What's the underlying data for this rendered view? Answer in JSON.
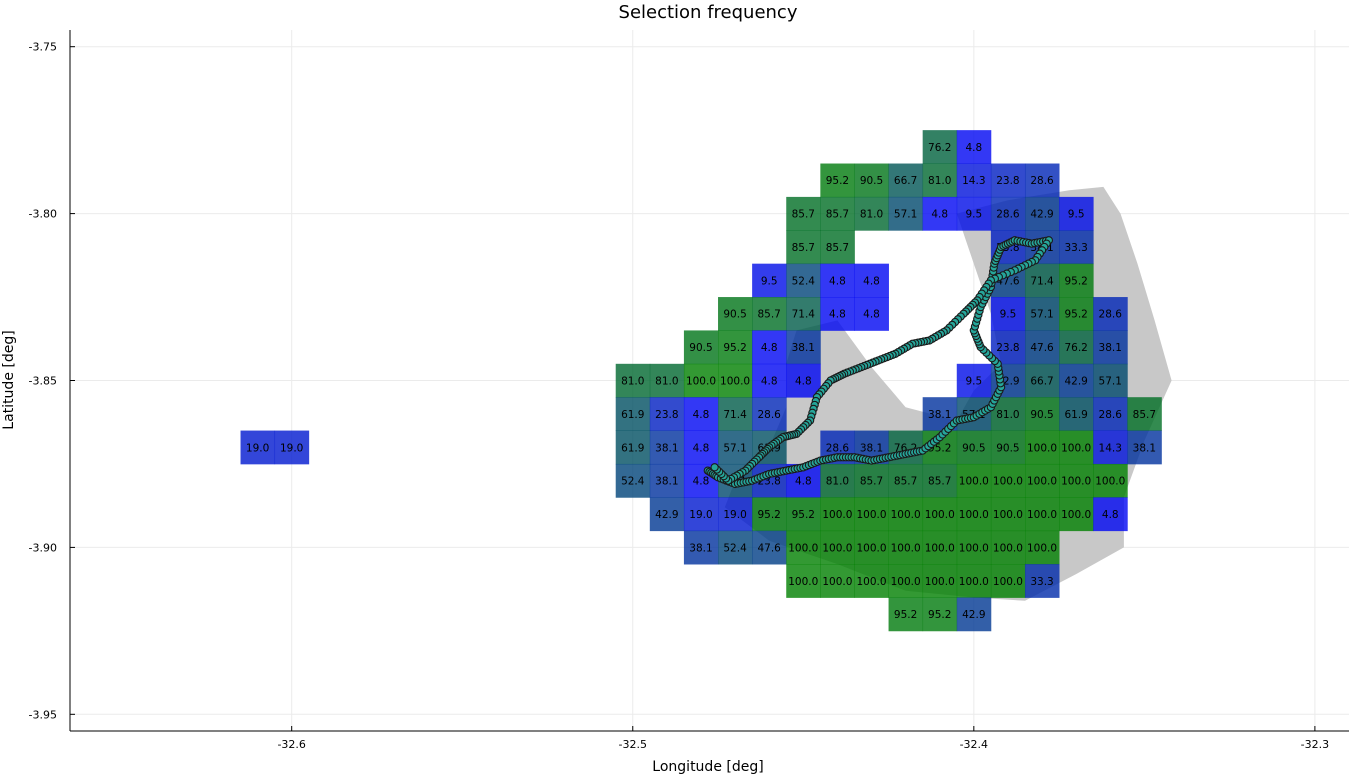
{
  "chart_data": {
    "type": "heatmap",
    "title": "Selection frequency",
    "xlabel": "Longitude [deg]",
    "ylabel": "Latitude [deg]",
    "xlim": [
      -32.665,
      -32.29
    ],
    "ylim": [
      -3.955,
      -3.745
    ],
    "xticks": [
      -32.6,
      -32.5,
      -32.4,
      -32.3
    ],
    "yticks": [
      -3.75,
      -3.8,
      -3.85,
      -3.9,
      -3.95
    ],
    "xtick_labels": [
      "-32.6",
      "-32.5",
      "-32.4",
      "-32.3"
    ],
    "ytick_labels": [
      "-3.75",
      "-3.80",
      "-3.85",
      "-3.90",
      "-3.95"
    ],
    "grid": true,
    "legend": "none",
    "cell_size_deg": [
      0.01,
      0.01
    ],
    "colors": {
      "low": "#0000ff",
      "high": "#008000",
      "region": "#c8c8c8",
      "track_fill": "#26a69a",
      "track_edge": "#1a1a1a",
      "grid": "#ebebeb"
    },
    "cells": [
      {
        "lon": -32.61,
        "lat": -3.87,
        "value": 19.0
      },
      {
        "lon": -32.6,
        "lat": -3.87,
        "value": 19.0
      },
      {
        "lon": -32.41,
        "lat": -3.78,
        "value": 76.2
      },
      {
        "lon": -32.4,
        "lat": -3.78,
        "value": 4.8
      },
      {
        "lon": -32.44,
        "lat": -3.79,
        "value": 95.2
      },
      {
        "lon": -32.43,
        "lat": -3.79,
        "value": 90.5
      },
      {
        "lon": -32.42,
        "lat": -3.79,
        "value": 66.7
      },
      {
        "lon": -32.41,
        "lat": -3.79,
        "value": 81.0
      },
      {
        "lon": -32.4,
        "lat": -3.79,
        "value": 14.3
      },
      {
        "lon": -32.39,
        "lat": -3.79,
        "value": 23.8
      },
      {
        "lon": -32.38,
        "lat": -3.79,
        "value": 28.6
      },
      {
        "lon": -32.45,
        "lat": -3.8,
        "value": 85.7
      },
      {
        "lon": -32.44,
        "lat": -3.8,
        "value": 85.7
      },
      {
        "lon": -32.43,
        "lat": -3.8,
        "value": 81.0
      },
      {
        "lon": -32.42,
        "lat": -3.8,
        "value": 57.1
      },
      {
        "lon": -32.41,
        "lat": -3.8,
        "value": 4.8
      },
      {
        "lon": -32.4,
        "lat": -3.8,
        "value": 9.5
      },
      {
        "lon": -32.39,
        "lat": -3.8,
        "value": 28.6
      },
      {
        "lon": -32.38,
        "lat": -3.8,
        "value": 42.9
      },
      {
        "lon": -32.37,
        "lat": -3.8,
        "value": 9.5
      },
      {
        "lon": -32.45,
        "lat": -3.81,
        "value": 85.7
      },
      {
        "lon": -32.44,
        "lat": -3.81,
        "value": 85.7
      },
      {
        "lon": -32.39,
        "lat": -3.81,
        "value": 23.8
      },
      {
        "lon": -32.38,
        "lat": -3.81,
        "value": 38.1
      },
      {
        "lon": -32.37,
        "lat": -3.81,
        "value": 33.3
      },
      {
        "lon": -32.46,
        "lat": -3.82,
        "value": 9.5
      },
      {
        "lon": -32.45,
        "lat": -3.82,
        "value": 52.4
      },
      {
        "lon": -32.44,
        "lat": -3.82,
        "value": 4.8
      },
      {
        "lon": -32.43,
        "lat": -3.82,
        "value": 4.8
      },
      {
        "lon": -32.39,
        "lat": -3.82,
        "value": 47.6
      },
      {
        "lon": -32.38,
        "lat": -3.82,
        "value": 71.4
      },
      {
        "lon": -32.37,
        "lat": -3.82,
        "value": 95.2
      },
      {
        "lon": -32.47,
        "lat": -3.83,
        "value": 90.5
      },
      {
        "lon": -32.46,
        "lat": -3.83,
        "value": 85.7
      },
      {
        "lon": -32.45,
        "lat": -3.83,
        "value": 71.4
      },
      {
        "lon": -32.44,
        "lat": -3.83,
        "value": 4.8
      },
      {
        "lon": -32.43,
        "lat": -3.83,
        "value": 4.8
      },
      {
        "lon": -32.39,
        "lat": -3.83,
        "value": 9.5
      },
      {
        "lon": -32.38,
        "lat": -3.83,
        "value": 57.1
      },
      {
        "lon": -32.37,
        "lat": -3.83,
        "value": 95.2
      },
      {
        "lon": -32.36,
        "lat": -3.83,
        "value": 28.6
      },
      {
        "lon": -32.48,
        "lat": -3.84,
        "value": 90.5
      },
      {
        "lon": -32.47,
        "lat": -3.84,
        "value": 95.2
      },
      {
        "lon": -32.46,
        "lat": -3.84,
        "value": 4.8
      },
      {
        "lon": -32.45,
        "lat": -3.84,
        "value": 38.1
      },
      {
        "lon": -32.39,
        "lat": -3.84,
        "value": 23.8
      },
      {
        "lon": -32.38,
        "lat": -3.84,
        "value": 47.6
      },
      {
        "lon": -32.37,
        "lat": -3.84,
        "value": 76.2
      },
      {
        "lon": -32.36,
        "lat": -3.84,
        "value": 38.1
      },
      {
        "lon": -32.5,
        "lat": -3.85,
        "value": 81.0
      },
      {
        "lon": -32.49,
        "lat": -3.85,
        "value": 81.0
      },
      {
        "lon": -32.48,
        "lat": -3.85,
        "value": 100.0
      },
      {
        "lon": -32.47,
        "lat": -3.85,
        "value": 100.0
      },
      {
        "lon": -32.46,
        "lat": -3.85,
        "value": 4.8
      },
      {
        "lon": -32.45,
        "lat": -3.85,
        "value": 4.8
      },
      {
        "lon": -32.4,
        "lat": -3.85,
        "value": 9.5
      },
      {
        "lon": -32.39,
        "lat": -3.85,
        "value": 42.9
      },
      {
        "lon": -32.38,
        "lat": -3.85,
        "value": 66.7
      },
      {
        "lon": -32.37,
        "lat": -3.85,
        "value": 42.9
      },
      {
        "lon": -32.36,
        "lat": -3.85,
        "value": 57.1
      },
      {
        "lon": -32.5,
        "lat": -3.86,
        "value": 61.9
      },
      {
        "lon": -32.49,
        "lat": -3.86,
        "value": 23.8
      },
      {
        "lon": -32.48,
        "lat": -3.86,
        "value": 4.8
      },
      {
        "lon": -32.47,
        "lat": -3.86,
        "value": 71.4
      },
      {
        "lon": -32.46,
        "lat": -3.86,
        "value": 28.6
      },
      {
        "lon": -32.41,
        "lat": -3.86,
        "value": 38.1
      },
      {
        "lon": -32.4,
        "lat": -3.86,
        "value": 57.1
      },
      {
        "lon": -32.39,
        "lat": -3.86,
        "value": 81.0
      },
      {
        "lon": -32.38,
        "lat": -3.86,
        "value": 90.5
      },
      {
        "lon": -32.37,
        "lat": -3.86,
        "value": 61.9
      },
      {
        "lon": -32.36,
        "lat": -3.86,
        "value": 28.6
      },
      {
        "lon": -32.35,
        "lat": -3.86,
        "value": 85.7
      },
      {
        "lon": -32.5,
        "lat": -3.87,
        "value": 61.9
      },
      {
        "lon": -32.49,
        "lat": -3.87,
        "value": 38.1
      },
      {
        "lon": -32.48,
        "lat": -3.87,
        "value": 4.8
      },
      {
        "lon": -32.47,
        "lat": -3.87,
        "value": 57.1
      },
      {
        "lon": -32.46,
        "lat": -3.87,
        "value": 61.9
      },
      {
        "lon": -32.44,
        "lat": -3.87,
        "value": 28.6
      },
      {
        "lon": -32.43,
        "lat": -3.87,
        "value": 38.1
      },
      {
        "lon": -32.42,
        "lat": -3.87,
        "value": 76.2
      },
      {
        "lon": -32.41,
        "lat": -3.87,
        "value": 95.2
      },
      {
        "lon": -32.4,
        "lat": -3.87,
        "value": 90.5
      },
      {
        "lon": -32.39,
        "lat": -3.87,
        "value": 90.5
      },
      {
        "lon": -32.38,
        "lat": -3.87,
        "value": 100.0
      },
      {
        "lon": -32.37,
        "lat": -3.87,
        "value": 100.0
      },
      {
        "lon": -32.36,
        "lat": -3.87,
        "value": 14.3
      },
      {
        "lon": -32.35,
        "lat": -3.87,
        "value": 38.1
      },
      {
        "lon": -32.5,
        "lat": -3.88,
        "value": 52.4
      },
      {
        "lon": -32.49,
        "lat": -3.88,
        "value": 38.1
      },
      {
        "lon": -32.48,
        "lat": -3.88,
        "value": 4.8
      },
      {
        "lon": -32.47,
        "lat": -3.88,
        "value": 57.1
      },
      {
        "lon": -32.46,
        "lat": -3.88,
        "value": 23.8
      },
      {
        "lon": -32.45,
        "lat": -3.88,
        "value": 4.8
      },
      {
        "lon": -32.44,
        "lat": -3.88,
        "value": 81.0
      },
      {
        "lon": -32.43,
        "lat": -3.88,
        "value": 85.7
      },
      {
        "lon": -32.42,
        "lat": -3.88,
        "value": 85.7
      },
      {
        "lon": -32.41,
        "lat": -3.88,
        "value": 85.7
      },
      {
        "lon": -32.4,
        "lat": -3.88,
        "value": 100.0
      },
      {
        "lon": -32.39,
        "lat": -3.88,
        "value": 100.0
      },
      {
        "lon": -32.38,
        "lat": -3.88,
        "value": 100.0
      },
      {
        "lon": -32.37,
        "lat": -3.88,
        "value": 100.0
      },
      {
        "lon": -32.36,
        "lat": -3.88,
        "value": 100.0
      },
      {
        "lon": -32.49,
        "lat": -3.89,
        "value": 42.9
      },
      {
        "lon": -32.48,
        "lat": -3.89,
        "value": 19.0
      },
      {
        "lon": -32.47,
        "lat": -3.89,
        "value": 19.0
      },
      {
        "lon": -32.46,
        "lat": -3.89,
        "value": 95.2
      },
      {
        "lon": -32.45,
        "lat": -3.89,
        "value": 95.2
      },
      {
        "lon": -32.44,
        "lat": -3.89,
        "value": 100.0
      },
      {
        "lon": -32.43,
        "lat": -3.89,
        "value": 100.0
      },
      {
        "lon": -32.42,
        "lat": -3.89,
        "value": 100.0
      },
      {
        "lon": -32.41,
        "lat": -3.89,
        "value": 100.0
      },
      {
        "lon": -32.4,
        "lat": -3.89,
        "value": 100.0
      },
      {
        "lon": -32.39,
        "lat": -3.89,
        "value": 100.0
      },
      {
        "lon": -32.38,
        "lat": -3.89,
        "value": 100.0
      },
      {
        "lon": -32.37,
        "lat": -3.89,
        "value": 100.0
      },
      {
        "lon": -32.36,
        "lat": -3.89,
        "value": 4.8
      },
      {
        "lon": -32.48,
        "lat": -3.9,
        "value": 38.1
      },
      {
        "lon": -32.47,
        "lat": -3.9,
        "value": 52.4
      },
      {
        "lon": -32.46,
        "lat": -3.9,
        "value": 47.6
      },
      {
        "lon": -32.45,
        "lat": -3.9,
        "value": 100.0
      },
      {
        "lon": -32.44,
        "lat": -3.9,
        "value": 100.0
      },
      {
        "lon": -32.43,
        "lat": -3.9,
        "value": 100.0
      },
      {
        "lon": -32.42,
        "lat": -3.9,
        "value": 100.0
      },
      {
        "lon": -32.41,
        "lat": -3.9,
        "value": 100.0
      },
      {
        "lon": -32.4,
        "lat": -3.9,
        "value": 100.0
      },
      {
        "lon": -32.39,
        "lat": -3.9,
        "value": 100.0
      },
      {
        "lon": -32.38,
        "lat": -3.9,
        "value": 100.0
      },
      {
        "lon": -32.45,
        "lat": -3.91,
        "value": 100.0
      },
      {
        "lon": -32.44,
        "lat": -3.91,
        "value": 100.0
      },
      {
        "lon": -32.43,
        "lat": -3.91,
        "value": 100.0
      },
      {
        "lon": -32.42,
        "lat": -3.91,
        "value": 100.0
      },
      {
        "lon": -32.41,
        "lat": -3.91,
        "value": 100.0
      },
      {
        "lon": -32.4,
        "lat": -3.91,
        "value": 100.0
      },
      {
        "lon": -32.39,
        "lat": -3.91,
        "value": 100.0
      },
      {
        "lon": -32.38,
        "lat": -3.91,
        "value": 33.3
      },
      {
        "lon": -32.42,
        "lat": -3.92,
        "value": 95.2
      },
      {
        "lon": -32.41,
        "lat": -3.92,
        "value": 95.2
      },
      {
        "lon": -32.4,
        "lat": -3.92,
        "value": 42.9
      }
    ],
    "region_outline": [
      [
        -32.455,
        -3.845
      ],
      [
        -32.452,
        -3.835
      ],
      [
        -32.44,
        -3.832
      ],
      [
        -32.43,
        -3.846
      ],
      [
        -32.42,
        -3.858
      ],
      [
        -32.405,
        -3.862
      ],
      [
        -32.4,
        -3.853
      ],
      [
        -32.392,
        -3.845
      ],
      [
        -32.395,
        -3.83
      ],
      [
        -32.4,
        -3.815
      ],
      [
        -32.405,
        -3.8
      ],
      [
        -32.39,
        -3.796
      ],
      [
        -32.372,
        -3.793
      ],
      [
        -32.362,
        -3.792
      ],
      [
        -32.357,
        -3.8
      ],
      [
        -32.352,
        -3.815
      ],
      [
        -32.347,
        -3.832
      ],
      [
        -32.342,
        -3.85
      ],
      [
        -32.35,
        -3.868
      ],
      [
        -32.356,
        -3.885
      ],
      [
        -32.356,
        -3.9
      ],
      [
        -32.37,
        -3.908
      ],
      [
        -32.385,
        -3.916
      ],
      [
        -32.4,
        -3.915
      ],
      [
        -32.42,
        -3.913
      ],
      [
        -32.44,
        -3.905
      ],
      [
        -32.46,
        -3.898
      ],
      [
        -32.473,
        -3.888
      ],
      [
        -32.47,
        -3.88
      ],
      [
        -32.46,
        -3.87
      ],
      [
        -32.455,
        -3.858
      ]
    ],
    "track": [
      [
        -32.478,
        -3.877
      ],
      [
        -32.475,
        -3.879
      ],
      [
        -32.47,
        -3.881
      ],
      [
        -32.465,
        -3.88
      ],
      [
        -32.46,
        -3.878
      ],
      [
        -32.455,
        -3.877
      ],
      [
        -32.45,
        -3.876
      ],
      [
        -32.445,
        -3.874
      ],
      [
        -32.44,
        -3.873
      ],
      [
        -32.435,
        -3.873
      ],
      [
        -32.43,
        -3.874
      ],
      [
        -32.425,
        -3.873
      ],
      [
        -32.42,
        -3.872
      ],
      [
        -32.415,
        -3.871
      ],
      [
        -32.41,
        -3.867
      ],
      [
        -32.405,
        -3.862
      ],
      [
        -32.4,
        -3.861
      ],
      [
        -32.395,
        -3.858
      ],
      [
        -32.392,
        -3.852
      ],
      [
        -32.393,
        -3.845
      ],
      [
        -32.398,
        -3.84
      ],
      [
        -32.4,
        -3.835
      ],
      [
        -32.398,
        -3.828
      ],
      [
        -32.395,
        -3.822
      ],
      [
        -32.394,
        -3.815
      ],
      [
        -32.392,
        -3.81
      ],
      [
        -32.388,
        -3.808
      ],
      [
        -32.383,
        -3.809
      ],
      [
        -32.378,
        -3.808
      ],
      [
        -32.382,
        -3.814
      ],
      [
        -32.388,
        -3.817
      ],
      [
        -32.395,
        -3.82
      ],
      [
        -32.399,
        -3.826
      ],
      [
        -32.403,
        -3.83
      ],
      [
        -32.408,
        -3.835
      ],
      [
        -32.413,
        -3.838
      ],
      [
        -32.418,
        -3.839
      ],
      [
        -32.423,
        -3.842
      ],
      [
        -32.428,
        -3.844
      ],
      [
        -32.433,
        -3.846
      ],
      [
        -32.438,
        -3.848
      ],
      [
        -32.442,
        -3.85
      ],
      [
        -32.446,
        -3.855
      ],
      [
        -32.448,
        -3.862
      ],
      [
        -32.452,
        -3.866
      ],
      [
        -32.456,
        -3.867
      ],
      [
        -32.46,
        -3.87
      ],
      [
        -32.463,
        -3.873
      ],
      [
        -32.467,
        -3.877
      ],
      [
        -32.472,
        -3.88
      ],
      [
        -32.476,
        -3.876
      ]
    ]
  }
}
